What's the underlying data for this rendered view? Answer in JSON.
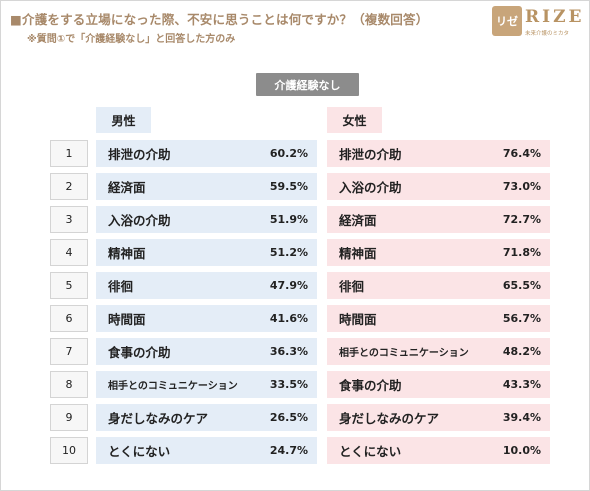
{
  "title": "■介護をする立場になった際、不安に思うことは何ですか？（複数回答）",
  "subtitle": "※質問①で「介護経験なし」と回答した方のみ",
  "logo": {
    "mark": "リゼ",
    "name": "RIZE",
    "tagline": "未来介護のミカタ"
  },
  "group_label": "介護経験なし",
  "male_header": "男性",
  "female_header": "女性",
  "ranks": [
    "1",
    "2",
    "3",
    "4",
    "5",
    "6",
    "7",
    "8",
    "9",
    "10"
  ],
  "male": [
    {
      "label": "排泄の介助",
      "value": "60.2%"
    },
    {
      "label": "経済面",
      "value": "59.5%"
    },
    {
      "label": "入浴の介助",
      "value": "51.9%"
    },
    {
      "label": "精神面",
      "value": "51.2%"
    },
    {
      "label": "徘徊",
      "value": "47.9%"
    },
    {
      "label": "時間面",
      "value": "41.6%"
    },
    {
      "label": "食事の介助",
      "value": "36.3%"
    },
    {
      "label": "相手とのコミュニケーション",
      "value": "33.5%"
    },
    {
      "label": "身だしなみのケア",
      "value": "26.5%"
    },
    {
      "label": "とくにない",
      "value": "24.7%"
    }
  ],
  "female": [
    {
      "label": "排泄の介助",
      "value": "76.4%"
    },
    {
      "label": "入浴の介助",
      "value": "73.0%"
    },
    {
      "label": "経済面",
      "value": "72.7%"
    },
    {
      "label": "精神面",
      "value": "71.8%"
    },
    {
      "label": "徘徊",
      "value": "65.5%"
    },
    {
      "label": "時間面",
      "value": "56.7%"
    },
    {
      "label": "相手とのコミュニケーション",
      "value": "48.2%"
    },
    {
      "label": "食事の介助",
      "value": "43.3%"
    },
    {
      "label": "身だしなみのケア",
      "value": "39.4%"
    },
    {
      "label": "とくにない",
      "value": "10.0%"
    }
  ],
  "colors": {
    "accent": "#a8896a",
    "male_bg": "#e4edf7",
    "female_bg": "#fbe4e6",
    "pill_bg": "#8c8c8c"
  }
}
